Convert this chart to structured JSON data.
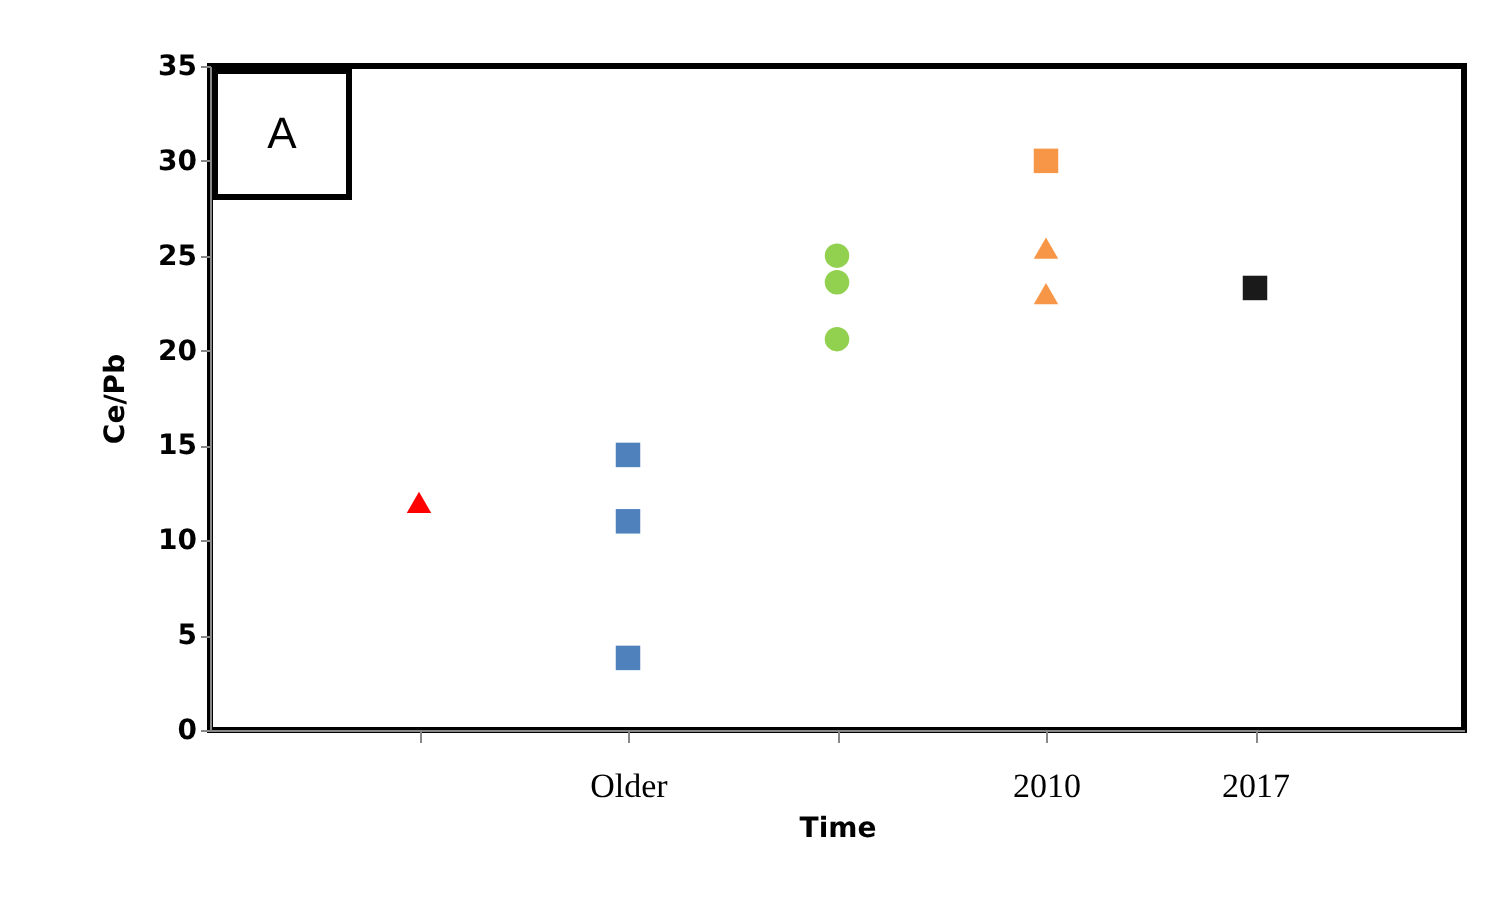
{
  "chart_data": {
    "type": "scatter",
    "xlabel": "Time",
    "ylabel": "Ce/Pb",
    "annotations": [
      "A"
    ],
    "categories": [
      null,
      "Older",
      null,
      "2010",
      "2017"
    ],
    "ylim": [
      0,
      35
    ],
    "yticks": [
      0,
      5,
      10,
      15,
      20,
      25,
      30,
      35
    ],
    "grid": false,
    "legend": false,
    "series": [
      {
        "color": "#ff0000",
        "marker": "triangle",
        "values": [
          12,
          null,
          null,
          null,
          null
        ]
      },
      {
        "color": "#4f81bd",
        "marker": "square",
        "values": [
          null,
          14.5,
          null,
          null,
          null
        ]
      },
      {
        "color": "#4f81bd",
        "marker": "square",
        "values": [
          null,
          11,
          null,
          null,
          null
        ]
      },
      {
        "color": "#4f81bd",
        "marker": "square",
        "values": [
          null,
          3.8,
          null,
          null,
          null
        ]
      },
      {
        "color": "#92d050",
        "marker": "circle",
        "values": [
          null,
          null,
          25,
          null,
          null
        ]
      },
      {
        "color": "#92d050",
        "marker": "circle",
        "values": [
          null,
          null,
          23.6,
          null,
          null
        ]
      },
      {
        "color": "#92d050",
        "marker": "circle",
        "values": [
          null,
          null,
          20.6,
          null,
          null
        ]
      },
      {
        "color": "#f79646",
        "marker": "square",
        "values": [
          null,
          null,
          null,
          30,
          null
        ]
      },
      {
        "color": "#f79646",
        "marker": "triangle",
        "values": [
          null,
          null,
          null,
          25.4,
          null
        ]
      },
      {
        "color": "#f79646",
        "marker": "triangle",
        "values": [
          null,
          null,
          null,
          23,
          null
        ]
      },
      {
        "color": "#1a1a1a",
        "marker": "square",
        "values": [
          null,
          null,
          null,
          null,
          23.3
        ]
      }
    ]
  }
}
